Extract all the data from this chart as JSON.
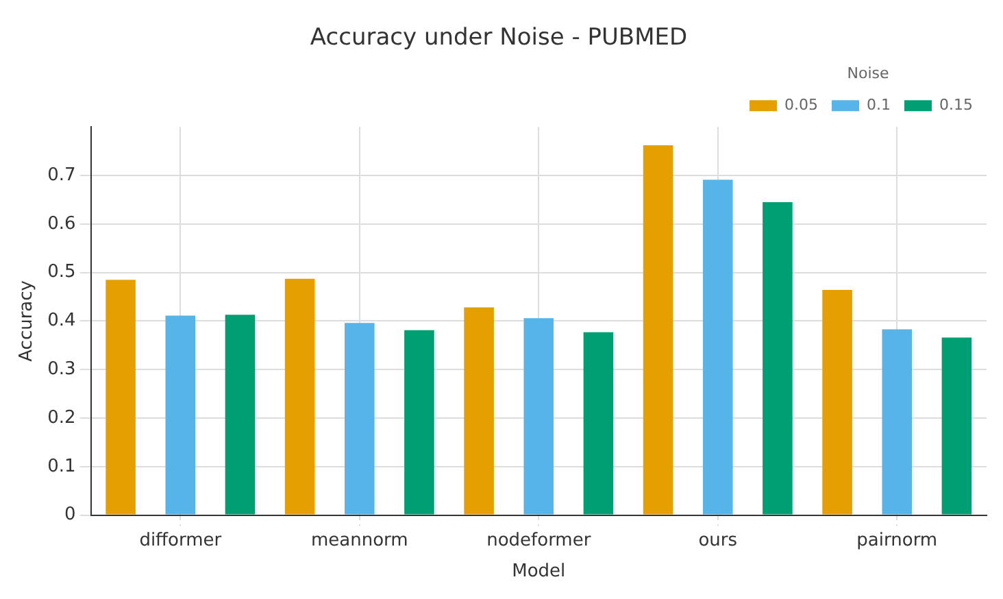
{
  "chart_data": {
    "type": "bar",
    "title": "Accuracy under Noise - PUBMED",
    "xlabel": "Model",
    "ylabel": "Accuracy",
    "legend_title": "Noise",
    "categories": [
      "difformer",
      "meannorm",
      "nodeformer",
      "ours",
      "pairnorm"
    ],
    "series": [
      {
        "name": "0.05",
        "color": "#e69f00",
        "values": [
          0.485,
          0.487,
          0.428,
          0.762,
          0.464
        ]
      },
      {
        "name": "0.1",
        "color": "#56b4e9",
        "values": [
          0.411,
          0.396,
          0.406,
          0.691,
          0.383
        ]
      },
      {
        "name": "0.15",
        "color": "#009e73",
        "values": [
          0.413,
          0.381,
          0.377,
          0.645,
          0.366
        ]
      }
    ],
    "ylim": [
      0,
      0.8
    ],
    "yticks": [
      0,
      0.1,
      0.2,
      0.3,
      0.4,
      0.5,
      0.6,
      0.7
    ],
    "grid": true,
    "legend": "top right"
  }
}
